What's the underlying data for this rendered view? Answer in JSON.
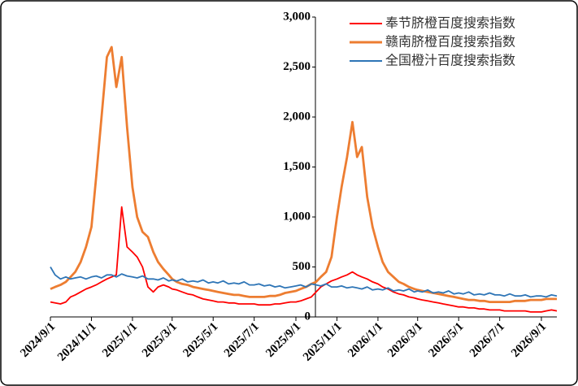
{
  "chart_data": {
    "type": "line",
    "x": [
      "2024/9/1",
      "2024/9/8",
      "2024/9/16",
      "2024/9/24",
      "2024/10/1",
      "2024/10/8",
      "2024/10/16",
      "2024/10/24",
      "2024/11/1",
      "2024/11/8",
      "2024/11/16",
      "2024/11/24",
      "2024/12/1",
      "2024/12/8",
      "2024/12/16",
      "2024/12/24",
      "2025/1/1",
      "2025/1/8",
      "2025/1/16",
      "2025/1/24",
      "2025/2/1",
      "2025/2/8",
      "2025/2/16",
      "2025/2/24",
      "2025/3/1",
      "2025/3/8",
      "2025/3/16",
      "2025/3/24",
      "2025/4/1",
      "2025/4/8",
      "2025/4/16",
      "2025/4/24",
      "2025/5/1",
      "2025/5/8",
      "2025/5/16",
      "2025/5/24",
      "2025/6/1",
      "2025/6/8",
      "2025/6/16",
      "2025/6/24",
      "2025/7/1",
      "2025/7/8",
      "2025/7/16",
      "2025/7/24",
      "2025/8/1",
      "2025/8/8",
      "2025/8/16",
      "2025/8/24",
      "2025/9/1",
      "2025/9/8",
      "2025/9/16",
      "2025/9/24",
      "2025/10/1",
      "2025/10/8",
      "2025/10/16",
      "2025/10/24",
      "2025/11/1",
      "2025/11/8",
      "2025/11/16",
      "2025/11/24",
      "2025/12/1",
      "2025/12/8",
      "2025/12/16",
      "2025/12/24",
      "2026/1/1",
      "2026/1/8",
      "2026/1/16",
      "2026/1/24",
      "2026/2/1",
      "2026/2/8",
      "2026/2/16",
      "2026/2/24",
      "2026/3/1",
      "2026/3/8",
      "2026/3/16",
      "2026/3/24",
      "2026/4/1",
      "2026/4/8",
      "2026/4/16",
      "2026/4/24",
      "2026/5/1",
      "2026/5/8",
      "2026/5/16",
      "2026/5/24",
      "2026/6/1",
      "2026/6/8",
      "2026/6/16",
      "2026/6/24",
      "2026/7/1",
      "2026/7/8",
      "2026/7/16",
      "2026/7/24",
      "2026/8/1",
      "2026/8/8",
      "2026/8/16",
      "2026/8/24",
      "2026/9/1",
      "2026/9/8",
      "2026/9/16",
      "2026/9/24"
    ],
    "series": [
      {
        "name": "奉节脐橙百度搜索指数",
        "color": "#ff0000",
        "values": [
          150,
          140,
          130,
          150,
          200,
          220,
          250,
          280,
          300,
          320,
          350,
          380,
          400,
          420,
          1100,
          700,
          650,
          600,
          500,
          300,
          250,
          300,
          320,
          300,
          280,
          270,
          250,
          230,
          220,
          200,
          180,
          170,
          160,
          150,
          150,
          140,
          140,
          130,
          130,
          130,
          130,
          120,
          120,
          120,
          130,
          130,
          140,
          150,
          150,
          160,
          180,
          200,
          250,
          300,
          330,
          360,
          380,
          400,
          420,
          450,
          420,
          400,
          380,
          350,
          330,
          300,
          280,
          250,
          230,
          220,
          200,
          190,
          180,
          170,
          160,
          150,
          140,
          130,
          120,
          110,
          100,
          100,
          90,
          90,
          80,
          80,
          70,
          70,
          70,
          60,
          60,
          60,
          60,
          60,
          50,
          50,
          50,
          60,
          70,
          60
        ]
      },
      {
        "name": "赣南脐橙百度搜索指数",
        "color": "#ed7d31",
        "values": [
          280,
          300,
          320,
          350,
          400,
          450,
          550,
          700,
          900,
          1400,
          2000,
          2600,
          2700,
          2300,
          2600,
          1900,
          1300,
          1000,
          850,
          800,
          650,
          550,
          480,
          420,
          380,
          350,
          330,
          320,
          300,
          290,
          280,
          270,
          260,
          250,
          240,
          230,
          220,
          220,
          210,
          200,
          200,
          200,
          200,
          210,
          210,
          220,
          240,
          250,
          260,
          280,
          300,
          330,
          350,
          400,
          450,
          600,
          1000,
          1300,
          1600,
          1950,
          1600,
          1700,
          1200,
          900,
          700,
          550,
          450,
          400,
          350,
          330,
          300,
          280,
          270,
          260,
          250,
          240,
          230,
          220,
          210,
          200,
          190,
          180,
          170,
          170,
          160,
          160,
          150,
          150,
          150,
          150,
          150,
          160,
          160,
          160,
          170,
          170,
          170,
          180,
          180,
          180
        ]
      },
      {
        "name": "全国橙汁百度搜索指数",
        "color": "#2e75b6",
        "values": [
          500,
          420,
          380,
          400,
          380,
          390,
          400,
          380,
          400,
          410,
          390,
          420,
          420,
          400,
          430,
          410,
          400,
          390,
          410,
          380,
          380,
          370,
          390,
          360,
          370,
          360,
          380,
          350,
          360,
          350,
          370,
          340,
          350,
          340,
          360,
          330,
          340,
          330,
          350,
          320,
          320,
          330,
          310,
          320,
          300,
          310,
          290,
          300,
          310,
          320,
          300,
          330,
          320,
          310,
          330,
          300,
          300,
          310,
          290,
          300,
          290,
          280,
          300,
          270,
          280,
          270,
          290,
          260,
          270,
          260,
          280,
          250,
          260,
          250,
          270,
          240,
          250,
          240,
          260,
          230,
          240,
          230,
          250,
          220,
          230,
          220,
          240,
          220,
          220,
          210,
          230,
          210,
          210,
          220,
          200,
          210,
          210,
          200,
          220,
          210
        ]
      }
    ],
    "xlim": [
      "2024/9/1",
      "2026/9/24"
    ],
    "xticks": [
      "2024/9/1",
      "2024/11/1",
      "2025/1/1",
      "2025/3/1",
      "2025/5/1",
      "2025/7/1",
      "2025/9/1",
      "2025/11/1",
      "2026/1/1",
      "2026/3/1",
      "2026/5/1",
      "2026/7/1",
      "2026/9/1"
    ],
    "ylim": [
      0,
      3000
    ],
    "yticks": [
      0,
      {
        "value": 500,
        "label": "500"
      },
      {
        "value": 1000,
        "label": "1,000"
      },
      {
        "value": 1500,
        "label": "1,500"
      },
      {
        "value": 2000,
        "label": "2,000"
      },
      {
        "value": 2500,
        "label": "2,500"
      },
      {
        "value": 3000,
        "label": "3,000"
      }
    ],
    "grid": false,
    "legend": "top-right"
  }
}
